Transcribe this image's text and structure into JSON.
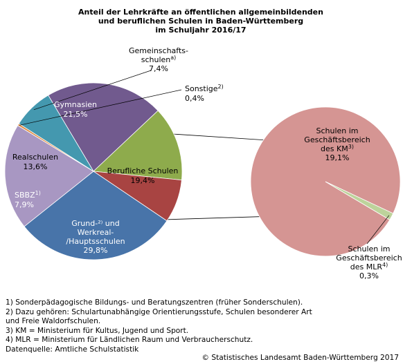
{
  "chart_data": [
    {
      "type": "pie",
      "title_lines": [
        "Anteil der Lehrkräfte an öffentlichen allgemeinbildenden",
        "und beruflichen Schulen in Baden-Württemberg",
        "im Schuljahr 2016/17"
      ],
      "slices": [
        {
          "label_lines": [
            "Gymnasien",
            "21,5%"
          ],
          "value": 21.5,
          "color": "#715a8e"
        },
        {
          "label_lines": [
            "Realschulen",
            "13,6%"
          ],
          "value": 13.6,
          "color": "#8eab4c"
        },
        {
          "label_lines": [
            "SBBZ",
            "7,9%"
          ],
          "sup": "1)",
          "value": 7.9,
          "color": "#a84442"
        },
        {
          "label_lines": [
            "Grund-²⁾ und",
            "Werkreal-",
            "/Hauptsschulen",
            "29,8%"
          ],
          "value": 29.8,
          "color": "#4874a9"
        },
        {
          "label_lines": [
            "Berufliche Schulen",
            "19,4%"
          ],
          "value": 19.4,
          "color": "#a897c2"
        },
        {
          "label_lines": [
            "Sonstige",
            "0,4%"
          ],
          "sup": "2)",
          "value": 0.4,
          "color": "#e0914a"
        },
        {
          "label_lines": [
            "Gemeinschafts-",
            "schulen",
            "7,4%"
          ],
          "sup": "a)",
          "value": 7.4,
          "color": "#4498af"
        }
      ]
    },
    {
      "type": "pie",
      "title": "",
      "slices": [
        {
          "label_lines": [
            "Schulen im",
            "Geschäftsbereich",
            "des KM",
            "19,1%"
          ],
          "sup": "3)",
          "value": 19.1,
          "color": "#d59593"
        },
        {
          "label_lines": [
            "Schulen im",
            "Geschäftsbereich",
            "des MLR",
            "0,3%"
          ],
          "sup": "4)",
          "value": 0.3,
          "color": "#bdd39b"
        }
      ]
    }
  ],
  "footnotes": [
    "1) Sonderpädagogische Bildungs- und Beratungszentren (früher Sonderschulen).",
    "2) Dazu gehören: Schulartunabhängige Orientierungsstufe, Schulen besonderer Art",
    "und Freie Waldorfschulen.",
    "3) KM = Ministerium für Kultus, Jugend und Sport.",
    "4) MLR = Ministerium für Ländlichen Raum und Verbraucherschutz.",
    "Datenquelle: Amtliche Schulstatistik"
  ],
  "copyright": "© Statistisches Landesamt Baden-Württemberg 2017"
}
